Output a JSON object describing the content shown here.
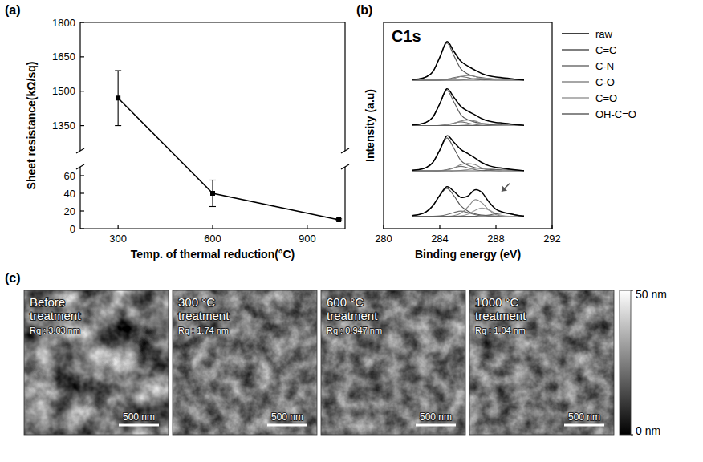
{
  "chart_data": [
    {
      "panel": "(a)",
      "type": "line",
      "xlabel": "Temp. of thermal reduction(°C)",
      "ylabel": "Sheet resistance(kΩ/sq)",
      "x": [
        300,
        600,
        1000
      ],
      "values": [
        1470,
        40,
        10
      ],
      "errors": [
        120,
        15,
        1
      ],
      "xlim": [
        180,
        1020
      ],
      "ylim": [
        0,
        1800
      ],
      "y_break": [
        70,
        1240
      ],
      "xticks": [
        300,
        600,
        900
      ],
      "yticks": [
        0,
        20,
        40,
        60,
        1350,
        1500,
        1650,
        1800
      ],
      "color": "#000000",
      "marker": "square",
      "line_style": "solid"
    },
    {
      "panel": "(b)",
      "type": "line",
      "title": "C1s",
      "xlabel": "Binding energy (eV)",
      "ylabel": "Intensity (a.u)",
      "x": [
        282,
        282.5,
        283,
        283.5,
        284,
        284.5,
        285,
        285.5,
        286,
        286.5,
        287,
        287.5,
        288,
        288.5,
        289,
        289.5,
        290
      ],
      "xlim": [
        280,
        292
      ],
      "xticks": [
        280,
        284,
        288,
        292
      ],
      "ylim": [
        0,
        100
      ],
      "tick_labels": "x",
      "legend": "right",
      "offsets": [
        72,
        50,
        28,
        6
      ],
      "series": [
        {
          "name": "raw",
          "color": "#000000",
          "line_style": "solid",
          "values": [
            [
              0.3,
              0.6,
              1.5,
              4,
              11.1,
              18.7,
              14,
              9.2,
              6.8,
              4.9,
              3.2,
              2.1,
              1.5,
              1.2,
              0.8,
              0.4,
              0.1
            ],
            [
              0.3,
              0.6,
              1.5,
              4,
              10.6,
              17.8,
              13.7,
              9.3,
              7,
              5.2,
              3.3,
              2.1,
              1.5,
              1.2,
              0.8,
              0.4,
              0.1
            ],
            [
              0.3,
              0.6,
              1.5,
              4,
              10.1,
              17,
              13.9,
              10.4,
              8.4,
              6.3,
              4,
              2.5,
              1.7,
              1.3,
              0.8,
              0.4,
              0.1
            ],
            [
              0.3,
              0.8,
              2,
              5,
              10.2,
              14.3,
              12.1,
              9.2,
              9.8,
              12.8,
              11.5,
              6.9,
              3.4,
              2,
              1.2,
              0.5,
              0.1
            ]
          ]
        },
        {
          "name": "C=C",
          "color": "#555555",
          "line_style": "solid",
          "values": [
            [
              0.3,
              0.6,
              1.5,
              4,
              11,
              18,
              12,
              5.5,
              3,
              1.8,
              1.2,
              0.8,
              0.5,
              0.3,
              0.2,
              0.1,
              0
            ],
            [
              0.3,
              0.6,
              1.5,
              4,
              10.5,
              17,
              11.5,
              5.2,
              2.8,
              1.7,
              1.1,
              0.7,
              0.5,
              0.3,
              0.2,
              0.1,
              0
            ],
            [
              0.3,
              0.6,
              1.5,
              4,
              10,
              16,
              11,
              5,
              2.7,
              1.6,
              1,
              0.7,
              0.5,
              0.3,
              0.2,
              0.1,
              0
            ],
            [
              0.3,
              0.8,
              2,
              5,
              10,
              13.5,
              10,
              5,
              2.5,
              1.2,
              0.6,
              0.3,
              0.1,
              0,
              0,
              0,
              0
            ]
          ]
        },
        {
          "name": "C-N",
          "color": "#707070",
          "line_style": "solid",
          "values": [
            [
              0,
              0,
              0,
              0,
              0.1,
              0.5,
              1.2,
              1.8,
              1.2,
              0.5,
              0.1,
              0,
              0,
              0,
              0,
              0,
              0
            ],
            [
              0,
              0,
              0,
              0,
              0.1,
              0.5,
              1.2,
              1.8,
              1.2,
              0.5,
              0.1,
              0,
              0,
              0,
              0,
              0,
              0
            ],
            [
              0,
              0,
              0,
              0,
              0.1,
              0.6,
              1.5,
              2.2,
              1.5,
              0.6,
              0.1,
              0,
              0,
              0,
              0,
              0,
              0
            ],
            [
              0,
              0,
              0,
              0,
              0.2,
              0.8,
              1.8,
              2.5,
              1.8,
              0.8,
              0.2,
              0,
              0,
              0,
              0,
              0,
              0
            ]
          ]
        },
        {
          "name": "C-O",
          "color": "#888888",
          "line_style": "solid",
          "values": [
            [
              0,
              0,
              0,
              0,
              0,
              0.2,
              0.8,
              1.8,
              2.2,
              1.8,
              0.8,
              0.2,
              0,
              0,
              0,
              0,
              0
            ],
            [
              0,
              0,
              0,
              0,
              0,
              0.3,
              1,
              2.2,
              2.6,
              2.2,
              1,
              0.3,
              0,
              0,
              0,
              0,
              0
            ],
            [
              0,
              0,
              0,
              0,
              0,
              0.4,
              1.4,
              3,
              3.6,
              3,
              1.4,
              0.4,
              0,
              0,
              0,
              0,
              0
            ],
            [
              0,
              0,
              0,
              0,
              0,
              0,
              0.3,
              1.5,
              4.5,
              8,
              6.5,
              3,
              0.8,
              0.1,
              0,
              0,
              0
            ]
          ]
        },
        {
          "name": "C=O",
          "color": "#9a9a9a",
          "line_style": "solid",
          "values": [
            [
              0,
              0,
              0,
              0,
              0,
              0,
              0,
              0.1,
              0.4,
              0.8,
              1,
              0.8,
              0.4,
              0.1,
              0,
              0,
              0
            ],
            [
              0,
              0,
              0,
              0,
              0,
              0,
              0,
              0.1,
              0.4,
              0.8,
              1,
              0.8,
              0.4,
              0.1,
              0,
              0,
              0
            ],
            [
              0,
              0,
              0,
              0,
              0,
              0,
              0,
              0.2,
              0.6,
              1.1,
              1.4,
              1.1,
              0.6,
              0.2,
              0,
              0,
              0
            ],
            [
              0,
              0,
              0,
              0,
              0,
              0,
              0,
              0.2,
              1,
              2.8,
              4,
              3,
              1.3,
              0.3,
              0,
              0,
              0
            ]
          ]
        },
        {
          "name": "OH-C=O",
          "color": "#606060",
          "line_style": "solid",
          "values": [
            [
              0,
              0,
              0,
              0,
              0,
              0,
              0,
              0,
              0,
              0,
              0.1,
              0.3,
              0.6,
              0.8,
              0.6,
              0.3,
              0.1
            ],
            [
              0,
              0,
              0,
              0,
              0,
              0,
              0,
              0,
              0,
              0,
              0.1,
              0.3,
              0.6,
              0.8,
              0.6,
              0.3,
              0.1
            ],
            [
              0,
              0,
              0,
              0,
              0,
              0,
              0,
              0,
              0,
              0,
              0.1,
              0.3,
              0.6,
              0.8,
              0.6,
              0.3,
              0.1
            ],
            [
              0,
              0,
              0,
              0,
              0,
              0,
              0,
              0,
              0,
              0,
              0.2,
              0.6,
              1.2,
              1.6,
              1.2,
              0.5,
              0.1
            ]
          ]
        }
      ]
    }
  ],
  "afm_images": {
    "panel": "(c)",
    "images": [
      {
        "title": "Before treatment",
        "roughness": "Rq : 3.03 nm",
        "scale_bar": "500 nm"
      },
      {
        "title": "300 °C treatment",
        "roughness": "Rq : 1.74 nm",
        "scale_bar": "500 nm"
      },
      {
        "title": "600 °C treatment",
        "roughness": "Rq : 0.947 nm",
        "scale_bar": "500 nm"
      },
      {
        "title": "1000 °C treatment",
        "roughness": "Rq : 1.04 nm",
        "scale_bar": "500 nm"
      }
    ],
    "colorbar": {
      "range": [
        0,
        50
      ],
      "ticks": [
        {
          "value": 0,
          "label": "0 nm"
        },
        {
          "value": 50,
          "label": "50 nm"
        }
      ]
    }
  }
}
